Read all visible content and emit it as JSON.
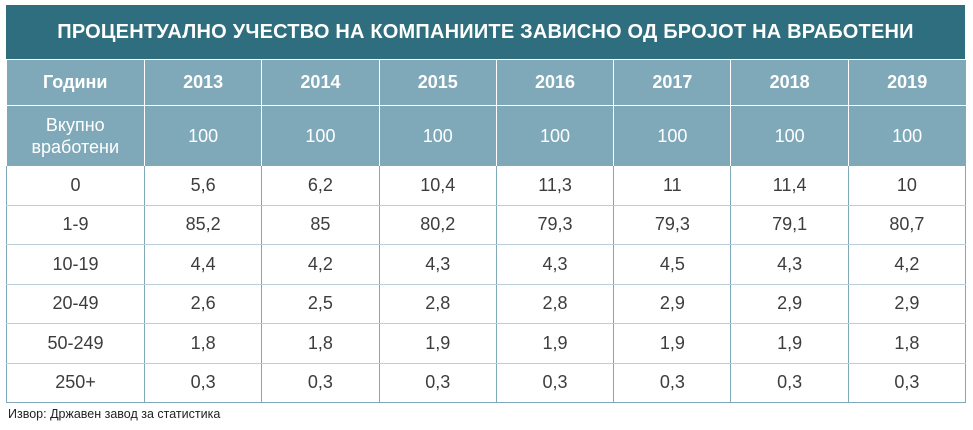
{
  "title": "ПРОЦЕНТУАЛНО УЧЕСТВО НА КОМПАНИИТЕ ЗАВИСНО ОД БРОЈОТ НА ВРАБОТЕНИ",
  "header": {
    "label": "Години",
    "years": [
      "2013",
      "2014",
      "2015",
      "2016",
      "2017",
      "2018",
      "2019"
    ]
  },
  "total_row": {
    "label_line1": "Вкупно",
    "label_line2": "вработени",
    "values": [
      "100",
      "100",
      "100",
      "100",
      "100",
      "100",
      "100"
    ]
  },
  "rows": [
    {
      "label": "0",
      "values": [
        "5,6",
        "6,2",
        "10,4",
        "11,3",
        "11",
        "11,4",
        "10"
      ]
    },
    {
      "label": "1-9",
      "values": [
        "85,2",
        "85",
        "80,2",
        "79,3",
        "79,3",
        "79,1",
        "80,7"
      ]
    },
    {
      "label": "10-19",
      "values": [
        "4,4",
        "4,2",
        "4,3",
        "4,3",
        "4,5",
        "4,3",
        "4,2"
      ]
    },
    {
      "label": "20-49",
      "values": [
        "2,6",
        "2,5",
        "2,8",
        "2,8",
        "2,9",
        "2,9",
        "2,9"
      ]
    },
    {
      "label": "50-249",
      "values": [
        "1,8",
        "1,8",
        "1,9",
        "1,9",
        "1,9",
        "1,9",
        "1,8"
      ]
    },
    {
      "label": "250+",
      "values": [
        "0,3",
        "0,3",
        "0,3",
        "0,3",
        "0,3",
        "0,3",
        "0,3"
      ]
    }
  ],
  "source": "Извор: Државен завод за статистика",
  "colors": {
    "title_bg": "#2e6e7e",
    "header_bg": "#7fa9b9",
    "grid": "#7fa9b9"
  }
}
